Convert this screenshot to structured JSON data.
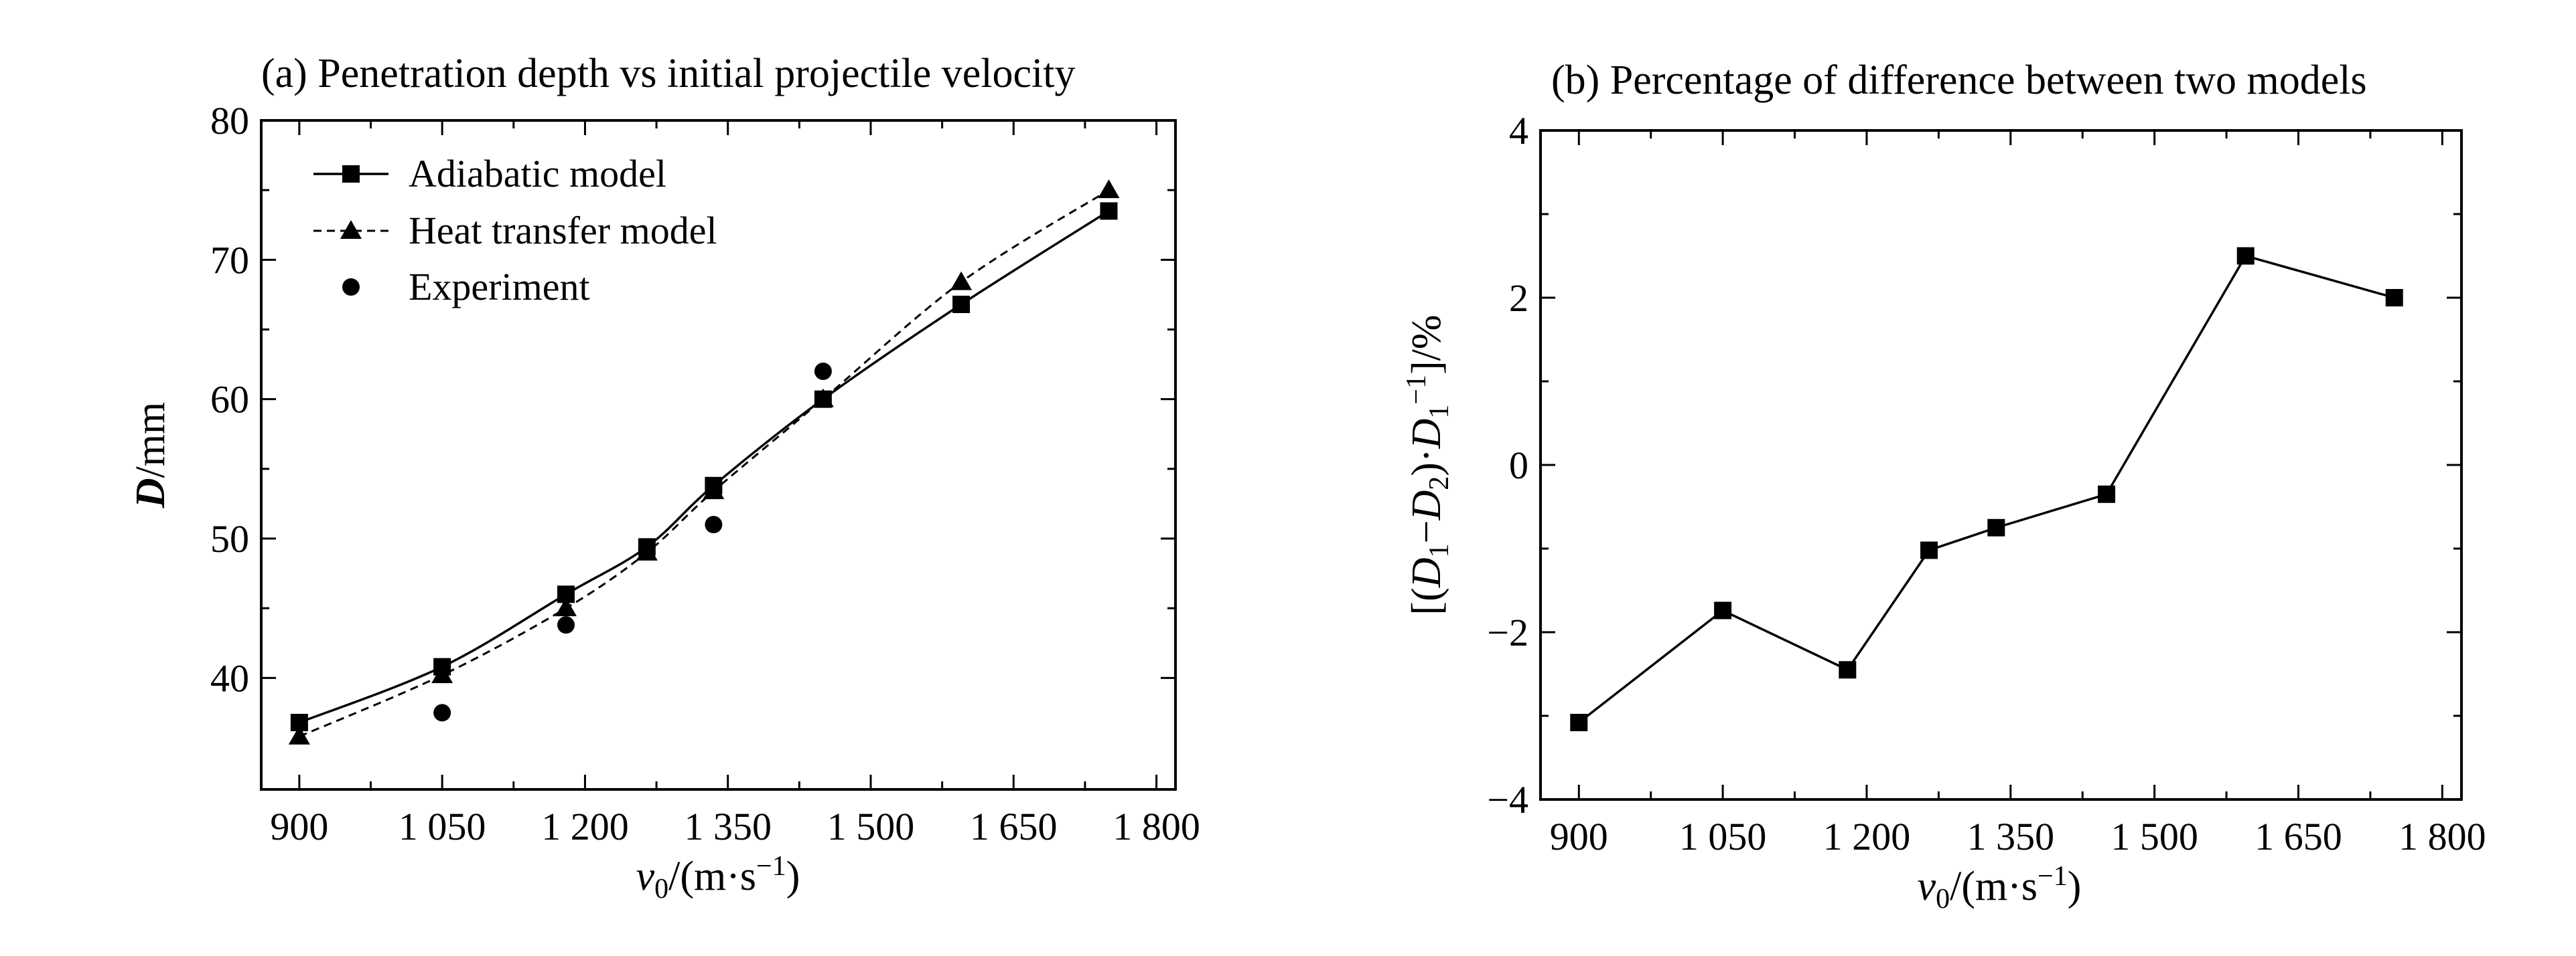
{
  "chart_data": [
    {
      "type": "line",
      "title": "(a) Penetration depth vs initial projectile velocity",
      "xlabel_base": "v",
      "xlabel_sub": "0",
      "xlabel_tail": "/(m·s",
      "xlabel_sup": "−1",
      "xlabel_close": ")",
      "ylabel_italic": "D",
      "ylabel_rest": "/mm",
      "xlim": [
        860,
        1820
      ],
      "ylim": [
        32,
        80
      ],
      "xticks": [
        900,
        1050,
        1200,
        1350,
        1500,
        1650,
        1800
      ],
      "xtick_labels": [
        "900",
        "1 050",
        "1 200",
        "1 350",
        "1 500",
        "1 650",
        "1 800"
      ],
      "yticks": [
        40,
        50,
        60,
        70,
        80
      ],
      "ytick_labels": [
        "40",
        "50",
        "60",
        "70",
        "80"
      ],
      "legend_position": "top-left",
      "series": [
        {
          "name": "Adiabatic model",
          "marker": "square",
          "line": "solid",
          "x": [
            900,
            1050,
            1180,
            1265,
            1335,
            1450,
            1595,
            1750
          ],
          "y": [
            36.8,
            40.8,
            46.0,
            49.4,
            53.8,
            60.0,
            66.8,
            73.5
          ]
        },
        {
          "name": "Heat transfer model",
          "marker": "triangle",
          "line": "dashed",
          "x": [
            900,
            1050,
            1180,
            1265,
            1335,
            1450,
            1595,
            1750
          ],
          "y": [
            35.8,
            40.2,
            45.0,
            49.0,
            53.4,
            60.0,
            68.4,
            75.0
          ]
        },
        {
          "name": "Experiment",
          "marker": "circle",
          "line": "none",
          "x": [
            1050,
            1180,
            1335,
            1450
          ],
          "y": [
            37.5,
            43.8,
            51.0,
            62.0
          ]
        }
      ]
    },
    {
      "type": "line",
      "title": "(b) Percentage of difference between two models",
      "xlabel_base": "v",
      "xlabel_sub": "0",
      "xlabel_tail": "/(m·s",
      "xlabel_sup": "−1",
      "xlabel_close": ")",
      "ylabel_parts": [
        "[(",
        "D",
        "1",
        "−",
        "D",
        "2",
        ")·",
        "D",
        "1",
        "−1",
        "]/%"
      ],
      "xlim": [
        860,
        1820
      ],
      "ylim": [
        -4,
        4
      ],
      "xticks": [
        900,
        1050,
        1200,
        1350,
        1500,
        1650,
        1800
      ],
      "xtick_labels": [
        "900",
        "1 050",
        "1 200",
        "1 350",
        "1 500",
        "1 650",
        "1 800"
      ],
      "yticks": [
        -4,
        -2,
        0,
        2,
        4
      ],
      "ytick_labels": [
        "−4",
        "−2",
        "0",
        "2",
        "4"
      ],
      "series": [
        {
          "marker": "square",
          "line": "solid",
          "x": [
            900,
            1050,
            1180,
            1265,
            1335,
            1450,
            1595,
            1750
          ],
          "y": [
            -3.08,
            -1.74,
            -2.45,
            -1.02,
            -0.75,
            -0.35,
            2.5,
            2.0
          ]
        }
      ]
    }
  ]
}
